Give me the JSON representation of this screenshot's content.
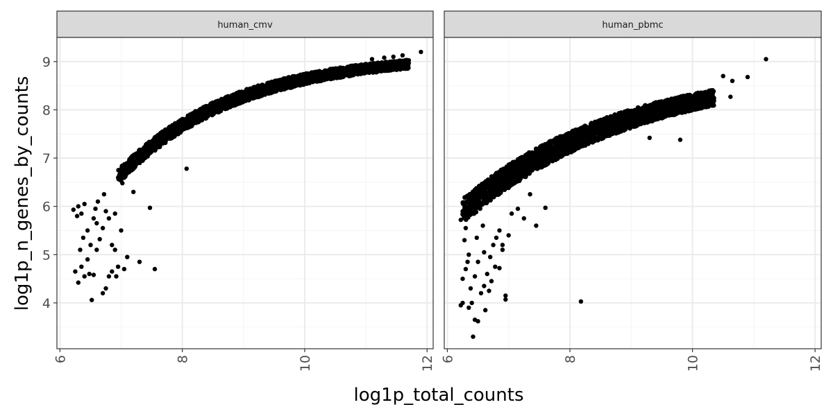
{
  "chart_data": {
    "type": "scatter",
    "xlabel": "log1p_total_counts",
    "ylabel": "log1p_n_genes_by_counts",
    "xlim": [
      5.95,
      12.1
    ],
    "ylim": [
      3.05,
      9.5
    ],
    "x_ticks": [
      6,
      8,
      10,
      12
    ],
    "y_ticks": [
      4,
      5,
      6,
      7,
      8,
      9
    ],
    "grid": true,
    "colors": {
      "point": "#000000",
      "strip": "#d9d9d9",
      "grid_major": "#ebebeb",
      "grid_minor": "#f4f4f4",
      "border": "#333333"
    },
    "panels": [
      {
        "title": "human_cmv",
        "points": [
          [
            11.9,
            9.2
          ],
          [
            11.6,
            9.13
          ],
          [
            11.45,
            9.1
          ],
          [
            11.3,
            9.08
          ],
          [
            11.1,
            9.05
          ],
          [
            6.22,
            5.93
          ],
          [
            6.3,
            6.0
          ],
          [
            6.35,
            5.85
          ],
          [
            6.4,
            6.05
          ],
          [
            6.28,
            5.8
          ],
          [
            6.25,
            4.65
          ],
          [
            6.3,
            4.42
          ],
          [
            6.35,
            4.75
          ],
          [
            6.4,
            4.55
          ],
          [
            6.45,
            4.9
          ],
          [
            6.52,
            4.06
          ],
          [
            6.55,
            4.58
          ],
          [
            6.6,
            5.1
          ],
          [
            6.65,
            5.32
          ],
          [
            6.7,
            4.2
          ],
          [
            6.75,
            4.3
          ],
          [
            6.8,
            4.55
          ],
          [
            6.85,
            4.65
          ],
          [
            6.9,
            5.1
          ],
          [
            6.95,
            4.75
          ],
          [
            6.7,
            5.55
          ],
          [
            6.8,
            5.75
          ],
          [
            6.9,
            5.85
          ],
          [
            7.0,
            5.5
          ],
          [
            7.1,
            4.95
          ],
          [
            6.5,
            5.2
          ],
          [
            6.45,
            5.5
          ],
          [
            6.6,
            5.65
          ],
          [
            6.75,
            5.9
          ],
          [
            6.85,
            5.2
          ],
          [
            6.62,
            6.1
          ],
          [
            6.72,
            6.25
          ],
          [
            7.02,
            6.48
          ],
          [
            7.2,
            6.3
          ],
          [
            7.3,
            4.85
          ],
          [
            7.47,
            5.97
          ],
          [
            7.55,
            4.7
          ],
          [
            8.07,
            6.78
          ],
          [
            6.38,
            5.35
          ],
          [
            6.55,
            5.75
          ],
          [
            6.92,
            4.55
          ],
          [
            7.05,
            4.7
          ],
          [
            6.33,
            5.1
          ],
          [
            6.48,
            4.6
          ],
          [
            6.58,
            5.95
          ]
        ]
      },
      {
        "title": "human_pbmc",
        "points": [
          [
            11.2,
            9.05
          ],
          [
            10.9,
            8.68
          ],
          [
            10.65,
            8.6
          ],
          [
            10.62,
            8.27
          ],
          [
            10.5,
            8.7
          ],
          [
            10.3,
            8.4
          ],
          [
            10.2,
            8.35
          ],
          [
            9.8,
            7.38
          ],
          [
            9.3,
            7.42
          ],
          [
            8.18,
            4.03
          ],
          [
            7.6,
            5.97
          ],
          [
            7.35,
            6.25
          ],
          [
            7.25,
            5.75
          ],
          [
            7.15,
            5.95
          ],
          [
            7.0,
            5.4
          ],
          [
            6.9,
            5.1
          ],
          [
            6.85,
            4.72
          ],
          [
            6.95,
            4.15
          ],
          [
            6.95,
            4.07
          ],
          [
            6.6,
            4.35
          ],
          [
            6.5,
            3.62
          ],
          [
            6.45,
            3.65
          ],
          [
            6.42,
            3.3
          ],
          [
            6.35,
            3.9
          ],
          [
            6.25,
            4.0
          ],
          [
            6.22,
            3.95
          ],
          [
            6.25,
            4.5
          ],
          [
            6.3,
            4.7
          ],
          [
            6.35,
            5.0
          ],
          [
            6.28,
            5.3
          ],
          [
            6.22,
            5.72
          ],
          [
            6.25,
            5.9
          ],
          [
            6.3,
            5.55
          ],
          [
            6.45,
            4.55
          ],
          [
            6.5,
            4.85
          ],
          [
            6.55,
            4.2
          ],
          [
            6.6,
            5.05
          ],
          [
            6.65,
            4.6
          ],
          [
            6.7,
            4.95
          ],
          [
            6.75,
            5.2
          ],
          [
            6.8,
            5.35
          ],
          [
            6.85,
            5.5
          ],
          [
            6.9,
            5.2
          ],
          [
            7.05,
            5.85
          ],
          [
            7.45,
            5.6
          ],
          [
            6.38,
            4.3
          ],
          [
            6.48,
            5.35
          ],
          [
            6.58,
            5.6
          ],
          [
            6.72,
            4.45
          ],
          [
            6.78,
            4.75
          ],
          [
            6.4,
            4.0
          ],
          [
            6.33,
            4.85
          ],
          [
            6.62,
            3.85
          ],
          [
            6.68,
            4.25
          ]
        ]
      }
    ]
  }
}
